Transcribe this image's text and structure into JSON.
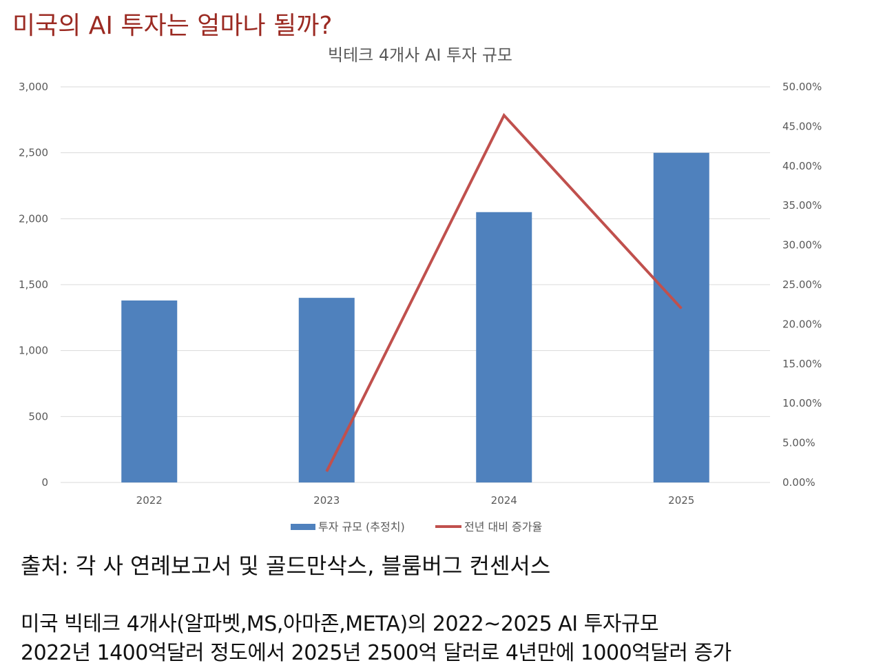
{
  "headline": "미국의 AI 투자는 얼마나 될까?",
  "source_text": "출처: 각 사 연례보고서 및 골드만삭스, 블룸버그 컨센서스",
  "description": [
    "미국 빅테크 4개사(알파벳,MS,아마존,META)의 2022~2025 AI 투자규모",
    "2022년 1400억달러 정도에서 2025년 2500억 달러로 4년만에 1000억달러 증가"
  ],
  "colors": {
    "bar": "#4f81bd",
    "line": "#c0504d",
    "grid": "#d9d9d9",
    "headline": "#9b2a22"
  },
  "chart_data": {
    "type": "bar",
    "title": "빅테크 4개사 AI 투자 규모",
    "categories": [
      "2022",
      "2023",
      "2024",
      "2025"
    ],
    "y_ticks": [
      "0",
      "500",
      "1,000",
      "1,500",
      "2,000",
      "2,500",
      "3,000"
    ],
    "y2_ticks": [
      "0.00%",
      "5.00%",
      "10.00%",
      "15.00%",
      "20.00%",
      "25.00%",
      "30.00%",
      "35.00%",
      "40.00%",
      "45.00%",
      "50.00%"
    ],
    "ylim": [
      0,
      3000
    ],
    "y2lim": [
      0,
      50
    ],
    "series": [
      {
        "name": "투자 규모 (추정치)",
        "type": "bar",
        "axis": "left",
        "values": [
          1380,
          1400,
          2050,
          2500
        ]
      },
      {
        "name": "전년 대비 증가율",
        "type": "line",
        "axis": "right",
        "values": [
          null,
          1.4,
          46.4,
          22.0
        ]
      }
    ],
    "legend": "bottom"
  }
}
